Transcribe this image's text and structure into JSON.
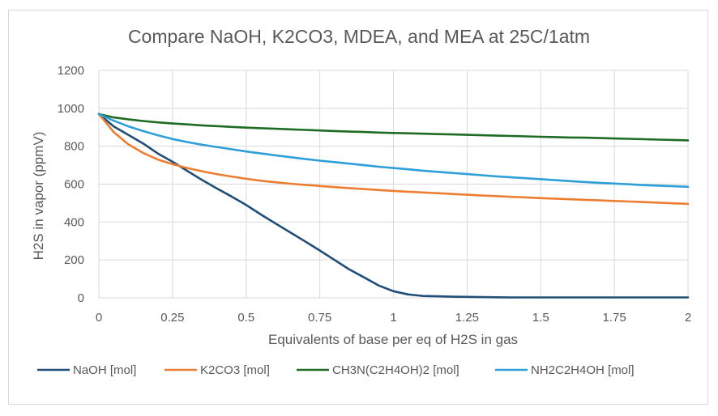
{
  "chart_data": {
    "type": "line",
    "title": "Compare NaOH, K2CO3, MDEA, and MEA at 25C/1atm",
    "xlabel": "Equivalents of base per eq of H2S in gas",
    "ylabel": "H2S in vapor (ppmV)",
    "xlim": [
      0,
      2
    ],
    "ylim": [
      0,
      1200
    ],
    "x_ticks": [
      "0",
      "0.25",
      "0.5",
      "0.75",
      "1",
      "1.25",
      "1.5",
      "1.75",
      "2"
    ],
    "x_tick_values": [
      0,
      0.25,
      0.5,
      0.75,
      1,
      1.25,
      1.5,
      1.75,
      2
    ],
    "y_ticks": [
      "0",
      "200",
      "400",
      "600",
      "800",
      "1000",
      "1200"
    ],
    "y_tick_values": [
      0,
      200,
      400,
      600,
      800,
      1000,
      1200
    ],
    "grid": true,
    "legend_position": "bottom",
    "x": [
      0,
      0.05,
      0.1,
      0.15,
      0.2,
      0.25,
      0.3,
      0.35,
      0.4,
      0.45,
      0.5,
      0.55,
      0.6,
      0.65,
      0.7,
      0.75,
      0.8,
      0.85,
      0.9,
      0.95,
      1.0,
      1.05,
      1.1,
      1.15,
      1.2,
      1.25,
      1.3,
      1.35,
      1.4,
      1.45,
      1.5,
      1.55,
      1.6,
      1.65,
      1.7,
      1.75,
      1.8,
      1.85,
      1.9,
      1.95,
      2.0
    ],
    "series": [
      {
        "name": "NaOH [mol]",
        "color": "#1f4e79",
        "values": [
          970,
          905,
          860,
          815,
          762,
          718,
          670,
          622,
          578,
          535,
          490,
          440,
          392,
          345,
          298,
          250,
          200,
          150,
          108,
          65,
          35,
          18,
          10,
          8,
          6,
          5,
          4,
          3,
          2,
          2,
          2,
          2,
          2,
          2,
          2,
          2,
          2,
          2,
          2,
          2,
          2
        ]
      },
      {
        "name": "K2CO3 [mol]",
        "color": "#ed7d31",
        "values": [
          970,
          875,
          810,
          765,
          730,
          705,
          685,
          668,
          653,
          640,
          628,
          618,
          610,
          602,
          596,
          590,
          584,
          579,
          574,
          569,
          564,
          560,
          556,
          552,
          548,
          544,
          540,
          537,
          533,
          530,
          526,
          523,
          520,
          517,
          514,
          511,
          508,
          505,
          502,
          499,
          496
        ]
      },
      {
        "name": "CH3N(C2H4OH)2 [mol]",
        "color": "#1e6b24",
        "values": [
          970,
          952,
          942,
          933,
          926,
          920,
          915,
          910,
          906,
          902,
          898,
          895,
          892,
          889,
          886,
          883,
          880,
          877,
          875,
          872,
          870,
          868,
          866,
          864,
          862,
          860,
          858,
          856,
          854,
          852,
          850,
          848,
          846,
          845,
          843,
          841,
          839,
          837,
          835,
          833,
          831
        ]
      },
      {
        "name": "NH2C2H4OH [mol]",
        "color": "#2e9fd8",
        "values": [
          970,
          935,
          905,
          880,
          858,
          838,
          822,
          808,
          796,
          784,
          772,
          762,
          752,
          742,
          733,
          724,
          716,
          708,
          700,
          692,
          685,
          678,
          671,
          665,
          659,
          653,
          647,
          641,
          636,
          631,
          626,
          621,
          616,
          611,
          607,
          603,
          599,
          595,
          592,
          589,
          586
        ]
      }
    ]
  }
}
